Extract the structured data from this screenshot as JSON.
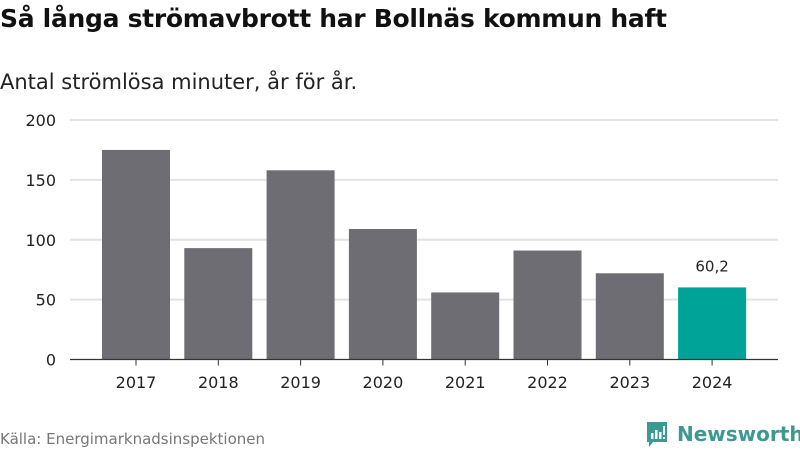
{
  "title": "Så långa strömavbrott har Bollnäs kommun haft",
  "subtitle": "Antal strömlösa minuter, år för år.",
  "source": "Källa: Energimarknadsinspektionen",
  "brand": "Newsworthy",
  "colors": {
    "bar": "#6e6d73",
    "highlight": "#00a398",
    "grid": "#e2e2e2",
    "brand": "#3a9a92"
  },
  "chart_data": {
    "type": "bar",
    "title": "Så långa strömavbrott har Bollnäs kommun haft",
    "subtitle": "Antal strömlösa minuter, år för år.",
    "categories": [
      "2017",
      "2018",
      "2019",
      "2020",
      "2021",
      "2022",
      "2023",
      "2024"
    ],
    "values": [
      175,
      93,
      158,
      109,
      56,
      91,
      72,
      60.2
    ],
    "highlight_index": 7,
    "data_labels": {
      "7": "60,2"
    },
    "yticks": [
      0,
      50,
      100,
      150,
      200
    ],
    "ylim": [
      0,
      200
    ],
    "xlabel": "",
    "ylabel": "",
    "grid": true
  }
}
